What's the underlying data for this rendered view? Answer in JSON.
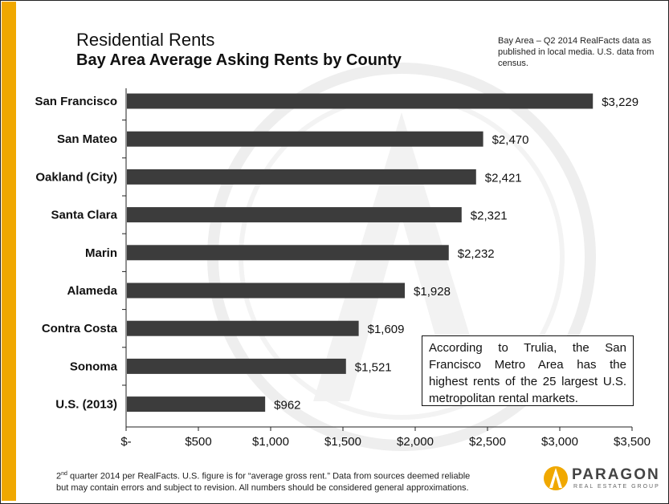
{
  "header": {
    "title": "Residential Rents",
    "subtitle": "Bay Area Average Asking Rents by County",
    "source_note": "Bay Area – Q2 2014 RealFacts data as published in local media. U.S. data from census."
  },
  "callout": {
    "text": "According to Trulia, the San Francisco Metro Area has the highest rents of the 25 largest U.S. metropolitan rental markets."
  },
  "footnote": {
    "sup": "nd",
    "pre": "2",
    "line1": " quarter 2014 per RealFacts. U.S. figure is for “average gross rent.” Data from sources deemed reliable",
    "line2": "but may contain errors and subject to revision. All numbers should be considered general approximations."
  },
  "logo": {
    "name": "PARAGON",
    "tagline": "REAL ESTATE GROUP"
  },
  "colors": {
    "accent": "#f0a800",
    "bar": "#3c3c3c"
  },
  "chart_data": {
    "type": "bar",
    "orientation": "horizontal",
    "categories": [
      "San Francisco",
      "San Mateo",
      "Oakland (City)",
      "Santa Clara",
      "Marin",
      "Alameda",
      "Contra Costa",
      "Sonoma",
      "U.S. (2013)"
    ],
    "values": [
      3229,
      2470,
      2421,
      2321,
      2232,
      1928,
      1609,
      1521,
      962
    ],
    "value_labels": [
      "$3,229",
      "$2,470",
      "$2,421",
      "$2,321",
      "$2,232",
      "$1,928",
      "$1,609",
      "$1,521",
      "$962"
    ],
    "x_ticks": [
      0,
      500,
      1000,
      1500,
      2000,
      2500,
      3000,
      3500
    ],
    "x_tick_labels": [
      "$-",
      "$500",
      "$1,000",
      "$1,500",
      "$2,000",
      "$2,500",
      "$3,000",
      "$3,500"
    ],
    "xlim": [
      0,
      3500
    ],
    "grid": false,
    "legend": "none"
  }
}
